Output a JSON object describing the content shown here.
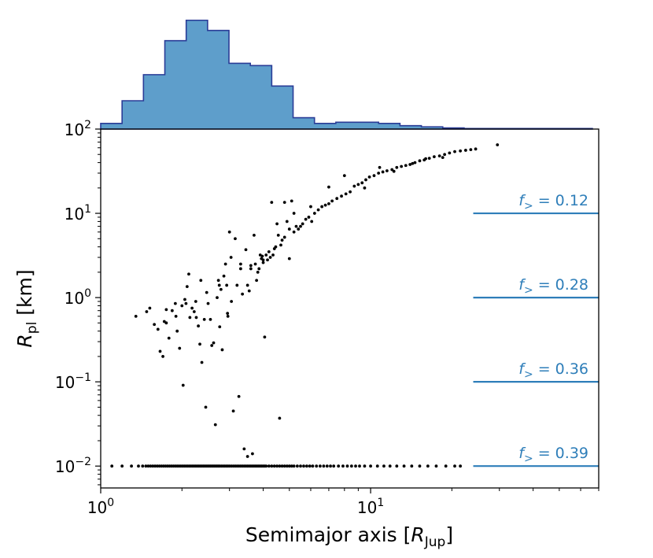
{
  "chart_data": [
    {
      "type": "histogram",
      "panel": "top-marginal",
      "title": "",
      "x_scale": "log",
      "xlim": [
        1,
        70
      ],
      "bins_log10_width": 0.0792,
      "bin_start": 1.0,
      "counts_relative": [
        0.05,
        0.25,
        0.48,
        0.78,
        0.96,
        0.87,
        0.58,
        0.56,
        0.38,
        0.1,
        0.05,
        0.06,
        0.06,
        0.05,
        0.03,
        0.02,
        0.01,
        0.005,
        0.005,
        0.005,
        0.005,
        0.005,
        0.005
      ],
      "fill_color": "#5e9ecb",
      "edge_color": "#2a3c97",
      "ylabel": "",
      "ytick_labels": []
    },
    {
      "type": "scatter",
      "panel": "main",
      "title": "",
      "x_scale": "log",
      "y_scale": "log",
      "xlim": [
        1,
        70
      ],
      "ylim": [
        0.0055,
        100
      ],
      "xlabel": {
        "text": "Semimajor axis [",
        "var": "R",
        "sub": "Jup",
        "close": "]"
      },
      "ylabel": {
        "var": "R",
        "sub": "pl",
        "unit": " [km]"
      },
      "xticks": [
        {
          "value": 1,
          "base": "10",
          "exp": "0"
        },
        {
          "value": 10,
          "base": "10",
          "exp": "1"
        }
      ],
      "yticks": [
        {
          "value": 100,
          "base": "10",
          "exp": "2"
        },
        {
          "value": 10,
          "base": "10",
          "exp": "1"
        },
        {
          "value": 1,
          "base": "10",
          "exp": "0"
        },
        {
          "value": 0.1,
          "base": "10",
          "exp": "−1"
        },
        {
          "value": 0.01,
          "base": "10",
          "exp": "−2"
        }
      ],
      "point_color": "#000000",
      "points": [
        [
          1.35,
          0.6
        ],
        [
          1.48,
          0.68
        ],
        [
          1.52,
          0.75
        ],
        [
          1.58,
          0.48
        ],
        [
          1.63,
          0.42
        ],
        [
          1.66,
          0.23
        ],
        [
          1.7,
          0.2
        ],
        [
          1.72,
          0.52
        ],
        [
          1.75,
          0.72
        ],
        [
          1.79,
          0.33
        ],
        [
          1.84,
          0.7
        ],
        [
          1.89,
          0.85
        ],
        [
          1.92,
          0.4
        ],
        [
          1.96,
          0.25
        ],
        [
          2.0,
          0.8
        ],
        [
          2.02,
          0.091
        ],
        [
          2.05,
          0.95
        ],
        [
          2.07,
          0.85
        ],
        [
          2.09,
          1.35
        ],
        [
          2.12,
          1.9
        ],
        [
          2.14,
          0.58
        ],
        [
          2.18,
          0.75
        ],
        [
          2.22,
          0.68
        ],
        [
          2.26,
          0.58
        ],
        [
          2.3,
          0.46
        ],
        [
          2.33,
          0.28
        ],
        [
          2.35,
          1.6
        ],
        [
          2.37,
          0.17
        ],
        [
          2.42,
          0.55
        ],
        [
          2.47,
          1.15
        ],
        [
          2.5,
          0.85
        ],
        [
          2.55,
          0.55
        ],
        [
          2.58,
          0.27
        ],
        [
          2.62,
          0.29
        ],
        [
          2.66,
          0.031
        ],
        [
          2.7,
          1.0
        ],
        [
          2.73,
          1.6
        ],
        [
          2.76,
          0.45
        ],
        [
          2.79,
          1.25
        ],
        [
          2.82,
          0.24
        ],
        [
          2.86,
          1.8
        ],
        [
          2.9,
          2.5
        ],
        [
          2.93,
          1.4
        ],
        [
          2.96,
          0.6
        ],
        [
          3.0,
          6.0
        ],
        [
          3.04,
          3.0
        ],
        [
          3.1,
          0.045
        ],
        [
          3.15,
          5.0
        ],
        [
          3.2,
          1.4
        ],
        [
          3.25,
          0.067
        ],
        [
          3.3,
          2.5
        ],
        [
          3.35,
          1.1
        ],
        [
          3.4,
          0.016
        ],
        [
          3.45,
          3.7
        ],
        [
          3.5,
          1.4
        ],
        [
          3.55,
          1.2
        ],
        [
          3.6,
          2.2
        ],
        [
          3.65,
          0.014
        ],
        [
          3.7,
          5.5
        ],
        [
          3.74,
          2.5
        ],
        [
          3.78,
          1.6
        ],
        [
          3.82,
          2.0
        ],
        [
          3.86,
          2.2
        ],
        [
          3.9,
          3.2
        ],
        [
          3.94,
          2.9
        ],
        [
          3.97,
          3.1
        ],
        [
          4.0,
          2.8
        ],
        [
          4.05,
          0.34
        ],
        [
          4.1,
          3.2
        ],
        [
          4.15,
          2.8
        ],
        [
          4.2,
          3.5
        ],
        [
          4.25,
          3.0
        ],
        [
          4.3,
          13.5
        ],
        [
          4.35,
          3.2
        ],
        [
          4.4,
          3.8
        ],
        [
          4.45,
          4.0
        ],
        [
          4.5,
          7.5
        ],
        [
          4.55,
          5.5
        ],
        [
          4.6,
          0.037
        ],
        [
          4.65,
          4.2
        ],
        [
          4.7,
          4.8
        ],
        [
          4.8,
          5.2
        ],
        [
          4.9,
          8.0
        ],
        [
          5.0,
          6.5
        ],
        [
          5.1,
          14.0
        ],
        [
          5.2,
          6.0
        ],
        [
          5.3,
          7.0
        ],
        [
          5.4,
          6.5
        ],
        [
          5.5,
          7.0
        ],
        [
          5.6,
          7.5
        ],
        [
          5.75,
          8.5
        ],
        [
          5.9,
          9.0
        ],
        [
          6.05,
          8.0
        ],
        [
          6.2,
          10.0
        ],
        [
          6.4,
          11.0
        ],
        [
          6.6,
          12.0
        ],
        [
          6.8,
          12.5
        ],
        [
          7.0,
          13.0
        ],
        [
          7.2,
          14.0
        ],
        [
          7.5,
          15.0
        ],
        [
          7.8,
          16.0
        ],
        [
          8.1,
          17.0
        ],
        [
          8.4,
          18.0
        ],
        [
          8.7,
          21.0
        ],
        [
          9.0,
          22.0
        ],
        [
          9.3,
          23.0
        ],
        [
          9.6,
          25.0
        ],
        [
          9.9,
          27.0
        ],
        [
          10.3,
          28.0
        ],
        [
          10.7,
          30.0
        ],
        [
          11.1,
          31.0
        ],
        [
          11.5,
          32.0
        ],
        [
          12.0,
          33.0
        ],
        [
          12.5,
          35.0
        ],
        [
          13.0,
          36.0
        ],
        [
          13.5,
          37.0
        ],
        [
          14.0,
          38.0
        ],
        [
          14.6,
          40.0
        ],
        [
          15.2,
          42.0
        ],
        [
          15.8,
          43.0
        ],
        [
          16.5,
          45.0
        ],
        [
          17.2,
          47.0
        ],
        [
          18.0,
          48.0
        ],
        [
          18.8,
          50.0
        ],
        [
          19.6,
          52.0
        ],
        [
          20.5,
          54.0
        ],
        [
          21.5,
          55.0
        ],
        [
          22.5,
          56.0
        ],
        [
          23.5,
          57.0
        ],
        [
          24.5,
          58.0
        ],
        [
          29.5,
          65.0
        ],
        [
          10.8,
          35.0
        ],
        [
          12.2,
          31.5
        ],
        [
          14.3,
          39.0
        ],
        [
          16.0,
          44.5
        ],
        [
          18.5,
          46.0
        ],
        [
          9.5,
          20.0
        ],
        [
          8.0,
          28.0
        ],
        [
          7.0,
          20.5
        ],
        [
          6.0,
          12.0
        ],
        [
          5.2,
          10.0
        ],
        [
          4.8,
          13.5
        ],
        [
          5.0,
          2.9
        ],
        [
          4.0,
          2.6
        ],
        [
          3.6,
          2.4
        ],
        [
          3.3,
          2.2
        ],
        [
          2.75,
          1.4
        ],
        [
          2.95,
          0.65
        ],
        [
          3.05,
          0.9
        ],
        [
          2.25,
          0.9
        ],
        [
          1.9,
          0.6
        ],
        [
          1.75,
          0.5
        ],
        [
          2.45,
          0.05
        ],
        [
          3.5,
          0.013
        ],
        [
          1.1,
          0.01
        ],
        [
          1.2,
          0.01
        ],
        [
          1.3,
          0.01
        ],
        [
          1.38,
          0.01
        ],
        [
          1.43,
          0.01
        ],
        [
          1.47,
          0.01
        ],
        [
          1.5,
          0.01
        ],
        [
          1.53,
          0.01
        ],
        [
          1.56,
          0.01
        ],
        [
          1.59,
          0.01
        ],
        [
          1.62,
          0.01
        ],
        [
          1.65,
          0.01
        ],
        [
          1.68,
          0.01
        ],
        [
          1.71,
          0.01
        ],
        [
          1.74,
          0.01
        ],
        [
          1.77,
          0.01
        ],
        [
          1.8,
          0.01
        ],
        [
          1.83,
          0.01
        ],
        [
          1.86,
          0.01
        ],
        [
          1.89,
          0.01
        ],
        [
          1.92,
          0.01
        ],
        [
          1.95,
          0.01
        ],
        [
          1.98,
          0.01
        ],
        [
          2.01,
          0.01
        ],
        [
          2.04,
          0.01
        ],
        [
          2.07,
          0.01
        ],
        [
          2.1,
          0.01
        ],
        [
          2.13,
          0.01
        ],
        [
          2.16,
          0.01
        ],
        [
          2.19,
          0.01
        ],
        [
          2.22,
          0.01
        ],
        [
          2.25,
          0.01
        ],
        [
          2.28,
          0.01
        ],
        [
          2.31,
          0.01
        ],
        [
          2.34,
          0.01
        ],
        [
          2.37,
          0.01
        ],
        [
          2.4,
          0.01
        ],
        [
          2.43,
          0.01
        ],
        [
          2.46,
          0.01
        ],
        [
          2.49,
          0.01
        ],
        [
          2.52,
          0.01
        ],
        [
          2.55,
          0.01
        ],
        [
          2.58,
          0.01
        ],
        [
          2.61,
          0.01
        ],
        [
          2.64,
          0.01
        ],
        [
          2.67,
          0.01
        ],
        [
          2.7,
          0.01
        ],
        [
          2.73,
          0.01
        ],
        [
          2.76,
          0.01
        ],
        [
          2.8,
          0.01
        ],
        [
          2.84,
          0.01
        ],
        [
          2.88,
          0.01
        ],
        [
          2.92,
          0.01
        ],
        [
          2.96,
          0.01
        ],
        [
          3.0,
          0.01
        ],
        [
          3.05,
          0.01
        ],
        [
          3.1,
          0.01
        ],
        [
          3.15,
          0.01
        ],
        [
          3.2,
          0.01
        ],
        [
          3.25,
          0.01
        ],
        [
          3.3,
          0.01
        ],
        [
          3.35,
          0.01
        ],
        [
          3.4,
          0.01
        ],
        [
          3.45,
          0.01
        ],
        [
          3.5,
          0.01
        ],
        [
          3.55,
          0.01
        ],
        [
          3.6,
          0.01
        ],
        [
          3.65,
          0.01
        ],
        [
          3.7,
          0.01
        ],
        [
          3.75,
          0.01
        ],
        [
          3.8,
          0.01
        ],
        [
          3.85,
          0.01
        ],
        [
          3.9,
          0.01
        ],
        [
          3.95,
          0.01
        ],
        [
          4.0,
          0.01
        ],
        [
          4.05,
          0.01
        ],
        [
          4.1,
          0.01
        ],
        [
          4.2,
          0.01
        ],
        [
          4.3,
          0.01
        ],
        [
          4.4,
          0.01
        ],
        [
          4.5,
          0.01
        ],
        [
          4.6,
          0.01
        ],
        [
          4.7,
          0.01
        ],
        [
          4.8,
          0.01
        ],
        [
          4.9,
          0.01
        ],
        [
          5.0,
          0.01
        ],
        [
          5.1,
          0.01
        ],
        [
          5.2,
          0.01
        ],
        [
          5.35,
          0.01
        ],
        [
          5.5,
          0.01
        ],
        [
          5.65,
          0.01
        ],
        [
          5.8,
          0.01
        ],
        [
          5.95,
          0.01
        ],
        [
          6.1,
          0.01
        ],
        [
          6.3,
          0.01
        ],
        [
          6.5,
          0.01
        ],
        [
          6.7,
          0.01
        ],
        [
          6.9,
          0.01
        ],
        [
          7.1,
          0.01
        ],
        [
          7.3,
          0.01
        ],
        [
          7.6,
          0.01
        ],
        [
          7.9,
          0.01
        ],
        [
          8.2,
          0.01
        ],
        [
          8.5,
          0.01
        ],
        [
          8.8,
          0.01
        ],
        [
          9.1,
          0.01
        ],
        [
          9.5,
          0.01
        ],
        [
          10.0,
          0.01
        ],
        [
          10.6,
          0.01
        ],
        [
          11.2,
          0.01
        ],
        [
          11.8,
          0.01
        ],
        [
          12.5,
          0.01
        ],
        [
          13.3,
          0.01
        ],
        [
          14.2,
          0.01
        ],
        [
          15.2,
          0.01
        ],
        [
          16.3,
          0.01
        ],
        [
          17.5,
          0.01
        ],
        [
          19.0,
          0.01
        ],
        [
          20.5,
          0.01
        ],
        [
          21.5,
          0.01
        ]
      ],
      "threshold_lines": [
        {
          "y": 10,
          "label_var": "f",
          "label_sub": ">",
          "label_value": " = 0.12",
          "x_from": 24,
          "x_to": 70
        },
        {
          "y": 1,
          "label_var": "f",
          "label_sub": ">",
          "label_value": " = 0.28",
          "x_from": 24,
          "x_to": 70
        },
        {
          "y": 0.1,
          "label_var": "f",
          "label_sub": ">",
          "label_value": " = 0.36",
          "x_from": 24,
          "x_to": 70
        },
        {
          "y": 0.01,
          "label_var": "f",
          "label_sub": ">",
          "label_value": " = 0.39",
          "x_from": 24,
          "x_to": 70
        }
      ],
      "threshold_color": "#2e7eb9",
      "grid": false
    }
  ]
}
